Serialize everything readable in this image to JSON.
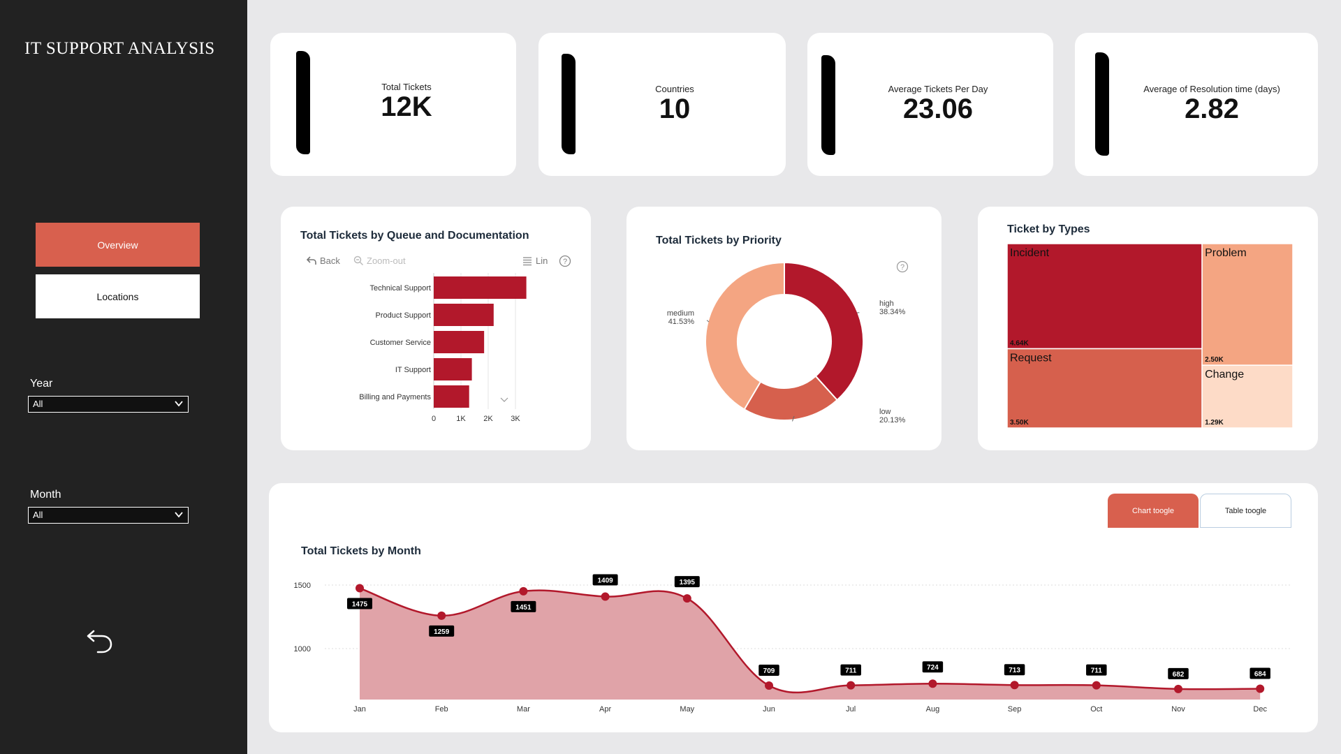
{
  "sidebar": {
    "title": "IT SUPPORT ANALYSIS",
    "nav": [
      {
        "label": "Overview",
        "active": true
      },
      {
        "label": "Locations",
        "active": false
      }
    ],
    "filters": {
      "year": {
        "label": "Year",
        "value": "All"
      },
      "month": {
        "label": "Month",
        "value": "All"
      }
    },
    "back_icon": "undo-arrow-icon"
  },
  "kpis": [
    {
      "label": "Total Tickets",
      "value": "12K"
    },
    {
      "label": "Countries",
      "value": "10"
    },
    {
      "label": "Average Tickets Per Day",
      "value": "23.06"
    },
    {
      "label": "Average of Resolution time (days)",
      "value": "2.82"
    }
  ],
  "toolbar": {
    "back": "Back",
    "zoom_out": "Zoom-out",
    "scale": "Lin"
  },
  "colors": {
    "accent": "#d8604e",
    "dark_red": "#b2182b",
    "mid_red": "#d6604d",
    "salmon": "#f4a582",
    "peach": "#fddbc7",
    "area_fill": "#e0a3a8"
  },
  "toggles": {
    "chart": "Chart toogle",
    "table": "Table toogle"
  },
  "chart_data": [
    {
      "id": "queue",
      "type": "bar",
      "orientation": "horizontal",
      "title": "Total Tickets by Queue and Documentation",
      "categories": [
        "Technical Support",
        "Product Support",
        "Customer Service",
        "IT Support",
        "Billing and Payments"
      ],
      "values": [
        3400,
        2200,
        1850,
        1400,
        1300
      ],
      "xticks": [
        "0",
        "1K",
        "2K",
        "3K"
      ],
      "xlim": [
        0,
        4000
      ]
    },
    {
      "id": "priority",
      "type": "pie",
      "title": "Total Tickets by Priority",
      "slices": [
        {
          "label": "high",
          "pct": "38.34%",
          "value": 38.34,
          "color": "#b2182b"
        },
        {
          "label": "low",
          "pct": "20.13%",
          "value": 20.13,
          "color": "#d6604d"
        },
        {
          "label": "medium",
          "pct": "41.53%",
          "value": 41.53,
          "color": "#f4a582"
        }
      ]
    },
    {
      "id": "types",
      "type": "treemap",
      "title": "Ticket by Types",
      "items": [
        {
          "label": "Incident",
          "value_label": "4.64K",
          "value": 4640,
          "color": "#b2182b"
        },
        {
          "label": "Request",
          "value_label": "3.50K",
          "value": 3500,
          "color": "#d6604d"
        },
        {
          "label": "Problem",
          "value_label": "2.50K",
          "value": 2500,
          "color": "#f4a582"
        },
        {
          "label": "Change",
          "value_label": "1.29K",
          "value": 1290,
          "color": "#fddbc7"
        }
      ]
    },
    {
      "id": "month",
      "type": "area",
      "title": "Total Tickets by Month",
      "categories": [
        "Jan",
        "Feb",
        "Mar",
        "Apr",
        "May",
        "Jun",
        "Jul",
        "Aug",
        "Sep",
        "Oct",
        "Nov",
        "Dec"
      ],
      "values": [
        1475,
        1259,
        1451,
        1409,
        1395,
        709,
        711,
        724,
        713,
        711,
        682,
        684
      ],
      "yticks": [
        1000,
        1500
      ],
      "ylim": [
        600,
        1600
      ]
    }
  ]
}
